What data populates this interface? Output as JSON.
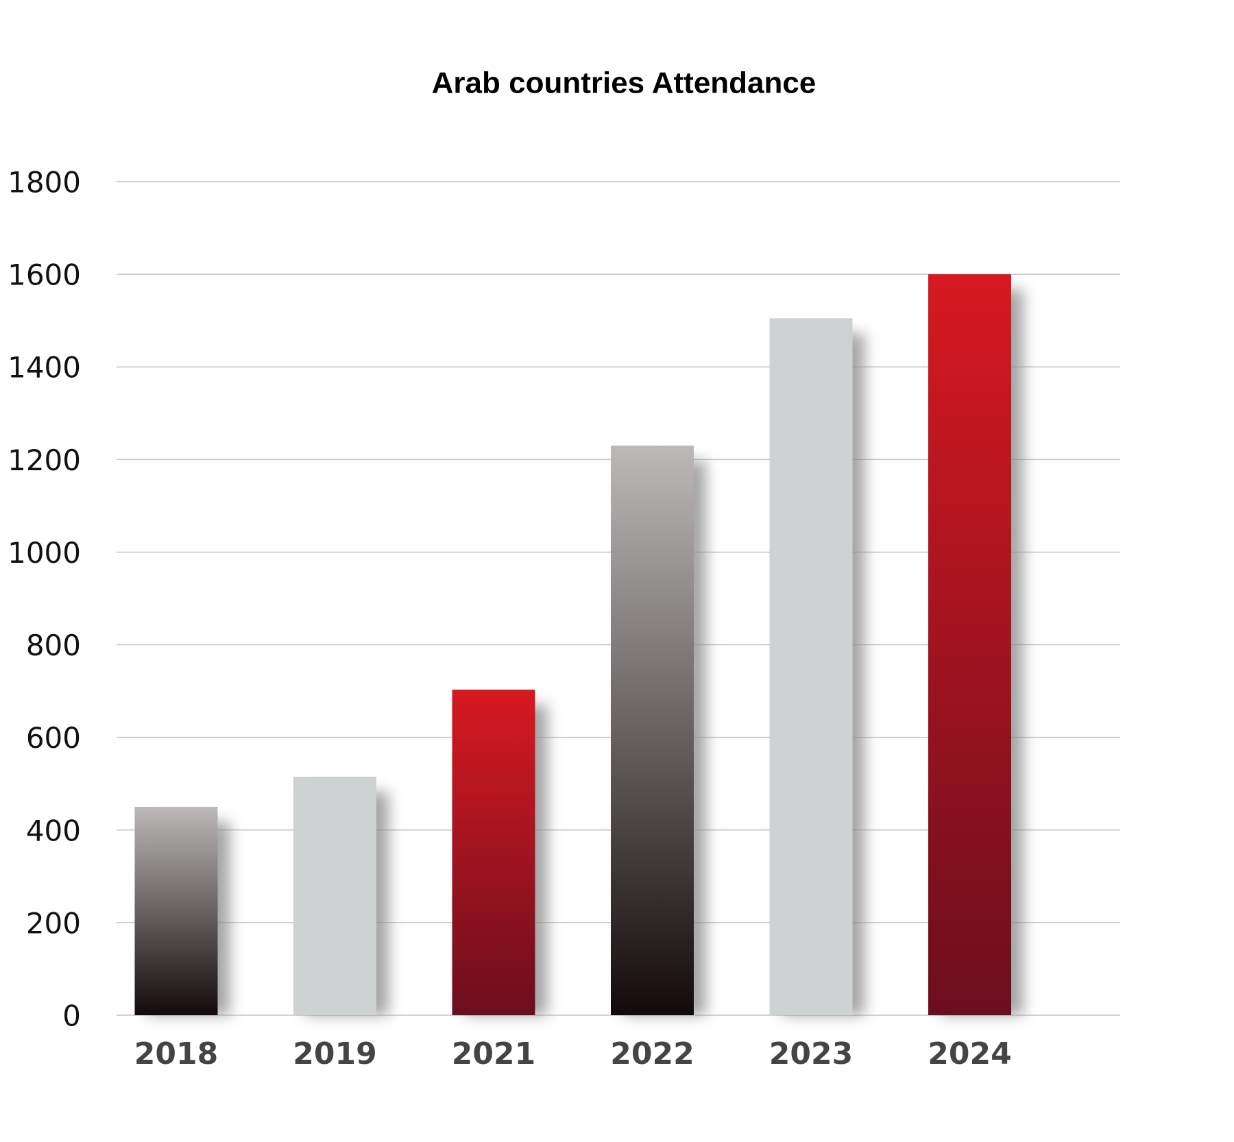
{
  "chart_data": {
    "type": "bar",
    "title": "Arab countries Attendance",
    "categories": [
      "2018",
      "2019",
      "2021",
      "2022",
      "2023",
      "2024"
    ],
    "values": [
      450,
      515,
      703,
      1230,
      1505,
      1600
    ],
    "colors": [
      [
        "#bdb9b9",
        "#120a0b"
      ],
      [
        "#cfd2d3",
        "#cfd2d3"
      ],
      [
        "#d71920",
        "#6b0e1e"
      ],
      [
        "#bdb9b9",
        "#120a0b"
      ],
      [
        "#cfd2d3",
        "#cfd2d3"
      ],
      [
        "#d71920",
        "#6b0e1e"
      ]
    ],
    "ylim": [
      0,
      1800
    ],
    "yticks": [
      0,
      200,
      400,
      600,
      800,
      1000,
      1200,
      1400,
      1600,
      1800
    ],
    "grid": true
  }
}
